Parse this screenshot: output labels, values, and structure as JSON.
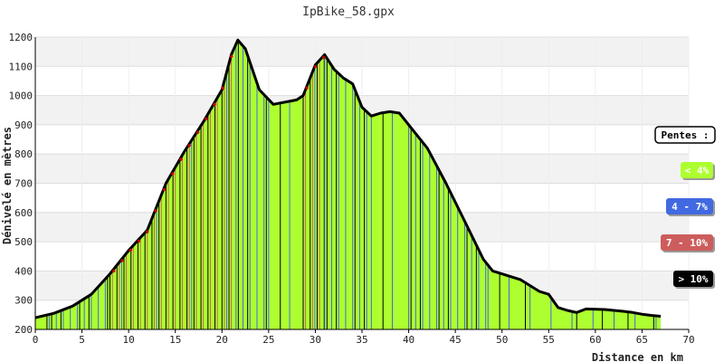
{
  "chart_data": {
    "type": "area",
    "title": "IpBike_58.gpx",
    "xlabel": "Distance en km",
    "ylabel": "Dénivelé en mètres",
    "xlim": [
      0,
      70
    ],
    "ylim": [
      200,
      1200
    ],
    "x_ticks": [
      0,
      5,
      10,
      15,
      20,
      25,
      30,
      35,
      40,
      45,
      50,
      55,
      60,
      65,
      70
    ],
    "y_ticks": [
      200,
      300,
      400,
      500,
      600,
      700,
      800,
      900,
      1000,
      1100,
      1200
    ],
    "grid": "horizontal bands",
    "x": [
      0,
      2,
      4,
      6,
      8,
      10,
      12,
      14,
      16,
      18,
      20,
      21,
      21.7,
      22.5,
      24,
      25.5,
      28,
      28.7,
      30,
      31,
      32,
      33,
      34,
      35,
      36,
      37,
      38,
      39,
      40,
      42,
      44,
      46,
      48,
      49,
      52,
      54,
      55,
      56,
      57,
      58,
      59,
      61,
      63,
      64,
      65,
      66,
      67
    ],
    "y": [
      240,
      255,
      280,
      320,
      390,
      470,
      540,
      700,
      810,
      910,
      1020,
      1140,
      1190,
      1160,
      1020,
      970,
      985,
      1000,
      1105,
      1140,
      1090,
      1060,
      1040,
      960,
      930,
      940,
      945,
      940,
      900,
      820,
      700,
      570,
      440,
      400,
      370,
      330,
      320,
      275,
      265,
      258,
      270,
      268,
      262,
      258,
      252,
      248,
      245
    ],
    "segments": [
      {
        "x": [
          0,
          1.5
        ],
        "slope": "< 4%"
      },
      {
        "x": [
          1.5,
          8
        ],
        "slope": "4 - 7%"
      },
      {
        "x": [
          8,
          21.5
        ],
        "slope": "7 - 10%"
      },
      {
        "x": [
          21.5,
          25
        ],
        "slope": "4 - 7%"
      },
      {
        "x": [
          25,
          28.7
        ],
        "slope": "< 4%"
      },
      {
        "x": [
          28.7,
          31
        ],
        "slope": "7 - 10%"
      },
      {
        "x": [
          31,
          36
        ],
        "slope": "4 - 7%"
      },
      {
        "x": [
          36,
          40
        ],
        "slope": "< 4%"
      },
      {
        "x": [
          40,
          48.5
        ],
        "slope": "4 - 7%"
      },
      {
        "x": [
          48.5,
          67
        ],
        "slope": "< 4%"
      }
    ],
    "legend": {
      "title": "Pentes :",
      "position": "right",
      "items": [
        {
          "label": "< 4%",
          "color": "#adff2f"
        },
        {
          "label": "4 - 7%",
          "color": "#4169e1"
        },
        {
          "label": "7 - 10%",
          "color": "#cd5c5c"
        },
        {
          "label": "> 10%",
          "color": "#000000"
        }
      ]
    },
    "colors": {
      "profile_line": "#000000",
      "marker": "#cc0000",
      "band": "#f2f2f2",
      "grid": "#dddddd"
    }
  }
}
